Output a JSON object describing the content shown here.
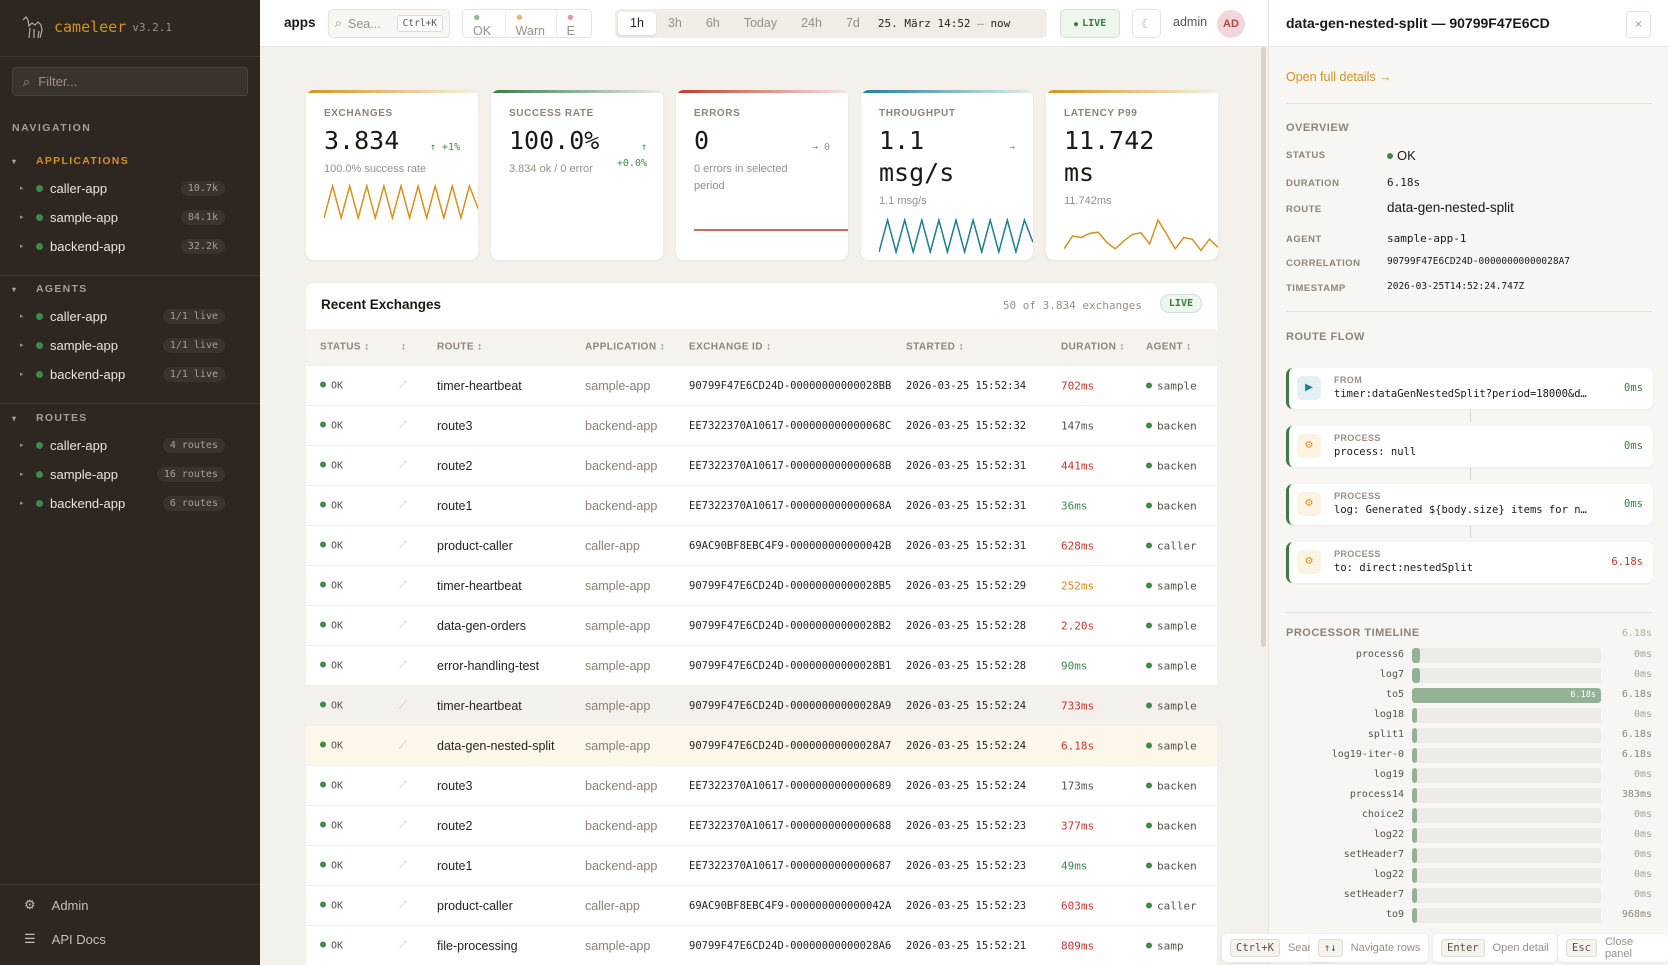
{
  "brand": {
    "name": "cameleer",
    "version": "v3.2.1"
  },
  "colors": {
    "accent": "#d4921e",
    "ok": "#3d8a4a",
    "error": "#c0392b",
    "warn": "#d48a1e",
    "throughput": "#1e7f8f"
  },
  "sidebar": {
    "filter_placeholder": "Filter...",
    "nav_label": "NAVIGATION",
    "sections": [
      {
        "title": "APPLICATIONS",
        "items": [
          {
            "label": "caller-app",
            "badge": "10.7k"
          },
          {
            "label": "sample-app",
            "badge": "84.1k"
          },
          {
            "label": "backend-app",
            "badge": "32.2k"
          }
        ]
      },
      {
        "title": "AGENTS",
        "items": [
          {
            "label": "caller-app",
            "badge": "1/1 live"
          },
          {
            "label": "sample-app",
            "badge": "1/1 live"
          },
          {
            "label": "backend-app",
            "badge": "1/1 live"
          }
        ]
      },
      {
        "title": "ROUTES",
        "items": [
          {
            "label": "caller-app",
            "badge": "4 routes"
          },
          {
            "label": "sample-app",
            "badge": "16 routes"
          },
          {
            "label": "backend-app",
            "badge": "6 routes"
          }
        ]
      }
    ],
    "footer": [
      {
        "label": "Admin",
        "icon": "gear-icon"
      },
      {
        "label": "API Docs",
        "icon": "menu-icon"
      }
    ]
  },
  "topbar": {
    "breadcrumb": "apps",
    "search_placeholder": "Sea...",
    "search_shortcut": "Ctrl+K",
    "status_filters": [
      "OK",
      "Warn",
      "E"
    ],
    "time_ranges": [
      "1h",
      "3h",
      "6h",
      "Today",
      "24h",
      "7d"
    ],
    "active_range": "1h",
    "range_from": "25. März 14:52",
    "range_sep": "—",
    "range_to": "now",
    "live": "LIVE",
    "user": "admin",
    "avatar": "AD"
  },
  "kpis": [
    {
      "label": "EXCHANGES",
      "value": "3.834",
      "trend": "↑ +1%",
      "sub": "100.0% success rate",
      "color": "#d4921e",
      "spark": [
        0,
        1,
        0,
        1,
        0,
        1,
        0,
        1,
        0,
        1,
        0,
        1,
        0,
        1,
        0,
        1,
        0,
        1,
        0.3
      ]
    },
    {
      "label": "SUCCESS RATE",
      "value": "100.0%",
      "trend": "↑ +0.0%",
      "sub": "3.834 ok / 0 error",
      "color": "#3d7a44",
      "spark": []
    },
    {
      "label": "ERRORS",
      "value": "0",
      "trend": "→ 0",
      "sub": "0 errors in selected period",
      "color": "#c0392b",
      "spark": [
        0,
        0
      ]
    },
    {
      "label": "THROUGHPUT",
      "value": "1.1 msg/s",
      "trend": "→",
      "sub": "1.1 msg/s",
      "color": "#1e7f8f",
      "spark": [
        0,
        1,
        0,
        1,
        0,
        1,
        0,
        1,
        0,
        1,
        0,
        1,
        0,
        1,
        0,
        1,
        0,
        1,
        0.3
      ]
    },
    {
      "label": "LATENCY P99",
      "value": "11.742 ms",
      "trend": "",
      "sub": "11.742ms",
      "color": "#d4921e",
      "spark": [
        0.1,
        0.5,
        0.45,
        0.58,
        0.62,
        0.3,
        0.1,
        0.35,
        0.55,
        0.6,
        0.25,
        1,
        0.55,
        0.1,
        0.45,
        0.4,
        0.05,
        0.4,
        0.15
      ]
    }
  ],
  "exchanges": {
    "title": "Recent Exchanges",
    "count": "50 of 3.834 exchanges",
    "live": "LIVE",
    "columns": [
      "STATUS",
      "",
      "ROUTE",
      "APPLICATION",
      "EXCHANGE ID",
      "STARTED",
      "DURATION",
      "AGENT"
    ],
    "rows": [
      {
        "status": "OK",
        "route": "timer-heartbeat",
        "app": "sample-app",
        "id": "90799F47E6CD24D-00000000000028BB",
        "started": "2026-03-25 15:52:34",
        "duration": "702ms",
        "level": "slow",
        "agent": "sample"
      },
      {
        "status": "OK",
        "route": "route3",
        "app": "backend-app",
        "id": "EE7322370A10617-000000000000068C",
        "started": "2026-03-25 15:52:32",
        "duration": "147ms",
        "level": "normal",
        "agent": "backen"
      },
      {
        "status": "OK",
        "route": "route2",
        "app": "backend-app",
        "id": "EE7322370A10617-000000000000068B",
        "started": "2026-03-25 15:52:31",
        "duration": "441ms",
        "level": "slow",
        "agent": "backen"
      },
      {
        "status": "OK",
        "route": "route1",
        "app": "backend-app",
        "id": "EE7322370A10617-000000000000068A",
        "started": "2026-03-25 15:52:31",
        "duration": "36ms",
        "level": "fast",
        "agent": "backen"
      },
      {
        "status": "OK",
        "route": "product-caller",
        "app": "caller-app",
        "id": "69AC90BF8EBC4F9-000000000000042B",
        "started": "2026-03-25 15:52:31",
        "duration": "628ms",
        "level": "slow",
        "agent": "caller"
      },
      {
        "status": "OK",
        "route": "timer-heartbeat",
        "app": "sample-app",
        "id": "90799F47E6CD24D-00000000000028B5",
        "started": "2026-03-25 15:52:29",
        "duration": "252ms",
        "level": "warn",
        "agent": "sample"
      },
      {
        "status": "OK",
        "route": "data-gen-orders",
        "app": "sample-app",
        "id": "90799F47E6CD24D-00000000000028B2",
        "started": "2026-03-25 15:52:28",
        "duration": "2.20s",
        "level": "slow",
        "agent": "sample"
      },
      {
        "status": "OK",
        "route": "error-handling-test",
        "app": "sample-app",
        "id": "90799F47E6CD24D-00000000000028B1",
        "started": "2026-03-25 15:52:28",
        "duration": "90ms",
        "level": "fast",
        "agent": "sample"
      },
      {
        "status": "OK",
        "route": "timer-heartbeat",
        "app": "sample-app",
        "id": "90799F47E6CD24D-00000000000028A9",
        "started": "2026-03-25 15:52:24",
        "duration": "733ms",
        "level": "slow",
        "agent": "sample",
        "state": "hover"
      },
      {
        "status": "OK",
        "route": "data-gen-nested-split",
        "app": "sample-app",
        "id": "90799F47E6CD24D-00000000000028A7",
        "started": "2026-03-25 15:52:24",
        "duration": "6.18s",
        "level": "slow",
        "agent": "sample",
        "state": "selected"
      },
      {
        "status": "OK",
        "route": "route3",
        "app": "backend-app",
        "id": "EE7322370A10617-0000000000000689",
        "started": "2026-03-25 15:52:24",
        "duration": "173ms",
        "level": "normal",
        "agent": "backen"
      },
      {
        "status": "OK",
        "route": "route2",
        "app": "backend-app",
        "id": "EE7322370A10617-0000000000000688",
        "started": "2026-03-25 15:52:23",
        "duration": "377ms",
        "level": "slow",
        "agent": "backen"
      },
      {
        "status": "OK",
        "route": "route1",
        "app": "backend-app",
        "id": "EE7322370A10617-0000000000000687",
        "started": "2026-03-25 15:52:23",
        "duration": "49ms",
        "level": "fast",
        "agent": "backen"
      },
      {
        "status": "OK",
        "route": "product-caller",
        "app": "caller-app",
        "id": "69AC90BF8EBC4F9-000000000000042A",
        "started": "2026-03-25 15:52:23",
        "duration": "603ms",
        "level": "slow",
        "agent": "caller"
      },
      {
        "status": "OK",
        "route": "file-processing",
        "app": "sample-app",
        "id": "90799F47E6CD24D-00000000000028A6",
        "started": "2026-03-25 15:52:21",
        "duration": "809ms",
        "level": "slow",
        "agent": "samp"
      }
    ]
  },
  "panel": {
    "title": "data-gen-nested-split — 90799F47E6CD",
    "close": "×",
    "open_full": "Open full details →",
    "overview_label": "OVERVIEW",
    "overview": [
      {
        "key": "STATUS",
        "value": "OK"
      },
      {
        "key": "DURATION",
        "value": "6.18s"
      },
      {
        "key": "ROUTE",
        "value": "data-gen-nested-split"
      },
      {
        "key": "AGENT",
        "value": "sample-app-1"
      },
      {
        "key": "CORRELATION",
        "value": "90799F47E6CD24D-00000000000028A7"
      },
      {
        "key": "TIMESTAMP",
        "value": "2026-03-25T14:52:24.747Z"
      }
    ],
    "flow_label": "ROUTE FLOW",
    "flow": [
      {
        "type": "FROM",
        "detail": "timer:dataGenNestedSplit?period=18000&delay=40…",
        "duration": "0ms",
        "icon": "play-icon"
      },
      {
        "type": "PROCESS",
        "detail": "process: null",
        "duration": "0ms",
        "icon": "gear-icon"
      },
      {
        "type": "PROCESS",
        "detail": "log: Generated ${body.size} items for nested …",
        "duration": "0ms",
        "icon": "gear-icon"
      },
      {
        "type": "PROCESS",
        "detail": "to: direct:nestedSplit",
        "duration": "6.18s",
        "icon": "gear-icon",
        "slow": true
      }
    ],
    "timeline_label": "PROCESSOR TIMELINE",
    "timeline_total": "6.18s",
    "timeline": [
      {
        "name": "process6",
        "value": "0ms",
        "fill": 0.02
      },
      {
        "name": "log7",
        "value": "0ms",
        "fill": 0.02
      },
      {
        "name": "to5",
        "value": "6.18s",
        "fill": 1,
        "bar_label": "6.18s"
      },
      {
        "name": "log18",
        "value": "0ms",
        "fill": 0
      },
      {
        "name": "split1",
        "value": "6.18s",
        "fill": 0
      },
      {
        "name": "log19-iter-0",
        "value": "6.18s",
        "fill": 0
      },
      {
        "name": "log19",
        "value": "0ms",
        "fill": 0
      },
      {
        "name": "process14",
        "value": "383ms",
        "fill": 0
      },
      {
        "name": "choice2",
        "value": "0ms",
        "fill": 0
      },
      {
        "name": "log22",
        "value": "0ms",
        "fill": 0
      },
      {
        "name": "setHeader7",
        "value": "0ms",
        "fill": 0
      },
      {
        "name": "log22",
        "value": "0ms",
        "fill": 0
      },
      {
        "name": "setHeader7",
        "value": "0ms",
        "fill": 0
      },
      {
        "name": "to9",
        "value": "968ms",
        "fill": 0
      }
    ]
  },
  "hints": [
    {
      "key": "Ctrl+K",
      "label": "Search"
    },
    {
      "key": "↑↓",
      "label": "Navigate rows"
    },
    {
      "key": "Enter",
      "label": "Open detail"
    },
    {
      "key": "Esc",
      "label": "Close panel"
    }
  ]
}
